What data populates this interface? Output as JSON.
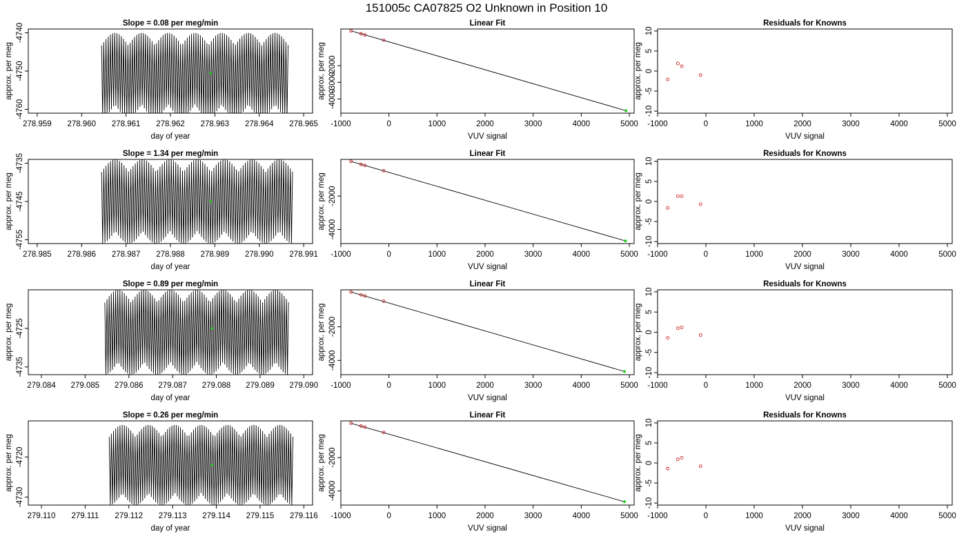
{
  "figure": {
    "title": "151005c     CA07825   O2 Unknown in Position  10"
  },
  "colors": {
    "trace": "#000000",
    "known_point": "#cc2222",
    "unknown_point": "#22cc22",
    "fit_line": "#000000"
  },
  "chart_data": [
    {
      "type": "line",
      "row": 1,
      "panel": "time-series",
      "title": "Slope =  0.08  per meg/min",
      "xlabel": "day of year",
      "ylabel": "approx. per meg",
      "xlim": [
        278.9588,
        278.9652
      ],
      "ylim": [
        -4761,
        -4739
      ],
      "xticks": [
        "278.959",
        "278.960",
        "278.961",
        "278.962",
        "278.963",
        "278.964",
        "278.965"
      ],
      "xtick_values": [
        278.959,
        278.96,
        278.961,
        278.962,
        278.963,
        278.964,
        278.965
      ],
      "yticks": [
        "-4740",
        "-4750",
        "-4760"
      ],
      "ytick_values": [
        -4740,
        -4750,
        -4760
      ],
      "trace": {
        "x_start": 278.96045,
        "x_end": 278.96465,
        "center": -4751,
        "amplitude": 11,
        "cycles": 85
      },
      "unknown_point": {
        "x": 278.9629,
        "y": -4750.5
      }
    },
    {
      "type": "scatter",
      "row": 1,
      "panel": "linear-fit",
      "title": "Linear Fit",
      "xlabel": "VUV signal",
      "ylabel": "approx. per meg",
      "xlim": [
        -1000,
        5100
      ],
      "ylim": [
        -4850,
        200
      ],
      "xticks": [
        "-1000",
        "0",
        "1000",
        "2000",
        "3000",
        "4000",
        "5000"
      ],
      "xtick_values": [
        -1000,
        0,
        1000,
        2000,
        3000,
        4000,
        5000
      ],
      "yticks": [
        "-2000",
        "-3000",
        "-4000"
      ],
      "ytick_values": [
        -2000,
        -3000,
        -4000
      ],
      "fit_line": {
        "x": [
          -790,
          4930
        ],
        "y": [
          90,
          -4700
        ]
      },
      "known_points": {
        "x": [
          -790,
          -580,
          -500,
          -110
        ],
        "y": [
          90,
          -90,
          -150,
          -470
        ]
      },
      "unknown_point": {
        "x": 4930,
        "y": -4700
      }
    },
    {
      "type": "scatter",
      "row": 1,
      "panel": "residuals",
      "title": "Residuals for Knowns",
      "xlabel": "VUV signal",
      "ylabel": "approx. per meg",
      "xlim": [
        -1000,
        5100
      ],
      "ylim": [
        -10.5,
        10.5
      ],
      "xticks": [
        "-1000",
        "0",
        "1000",
        "2000",
        "3000",
        "4000",
        "5000"
      ],
      "xtick_values": [
        -1000,
        0,
        1000,
        2000,
        3000,
        4000,
        5000
      ],
      "yticks": [
        "10",
        "5",
        "0",
        "-5",
        "-10"
      ],
      "ytick_values": [
        10,
        5,
        0,
        -5,
        -10
      ],
      "known_points": {
        "x": [
          -790,
          -580,
          -500,
          -110
        ],
        "y": [
          -2.1,
          1.9,
          1.2,
          -1.0
        ]
      }
    },
    {
      "type": "line",
      "row": 2,
      "panel": "time-series",
      "title": "Slope =  1.34  per meg/min",
      "xlabel": "day of year",
      "ylabel": "approx. per meg",
      "xlim": [
        278.9848,
        278.9912
      ],
      "ylim": [
        -4756,
        -4734
      ],
      "xticks": [
        "278.985",
        "278.986",
        "278.987",
        "278.988",
        "278.989",
        "278.990",
        "278.991"
      ],
      "xtick_values": [
        278.985,
        278.986,
        278.987,
        278.988,
        278.989,
        278.99,
        278.991
      ],
      "yticks": [
        "-4735",
        "-4745",
        "-4755"
      ],
      "ytick_values": [
        -4735,
        -4745,
        -4755
      ],
      "trace": {
        "x_start": 278.98645,
        "x_end": 278.99075,
        "center": -4745,
        "amplitude": 11,
        "cycles": 85
      },
      "unknown_point": {
        "x": 278.9889,
        "y": -4745
      }
    },
    {
      "type": "scatter",
      "row": 2,
      "panel": "linear-fit",
      "title": "Linear Fit",
      "xlabel": "VUV signal",
      "ylabel": "approx. per meg",
      "xlim": [
        -1000,
        5100
      ],
      "ylim": [
        -4850,
        200
      ],
      "xticks": [
        "-1000",
        "0",
        "1000",
        "2000",
        "3000",
        "4000",
        "5000"
      ],
      "xtick_values": [
        -1000,
        0,
        1000,
        2000,
        3000,
        4000,
        5000
      ],
      "yticks": [
        "-2000",
        "-4000"
      ],
      "ytick_values": [
        -2000,
        -4000
      ],
      "fit_line": {
        "x": [
          -790,
          4920
        ],
        "y": [
          80,
          -4690
        ]
      },
      "known_points": {
        "x": [
          -790,
          -580,
          -500,
          -110
        ],
        "y": [
          80,
          -100,
          -160,
          -480
        ]
      },
      "unknown_point": {
        "x": 4920,
        "y": -4690
      }
    },
    {
      "type": "scatter",
      "row": 2,
      "panel": "residuals",
      "title": "Residuals for Knowns",
      "xlabel": "VUV signal",
      "ylabel": "approx. per meg",
      "xlim": [
        -1000,
        5100
      ],
      "ylim": [
        -10.5,
        10.5
      ],
      "xticks": [
        "-1000",
        "0",
        "1000",
        "2000",
        "3000",
        "4000",
        "5000"
      ],
      "xtick_values": [
        -1000,
        0,
        1000,
        2000,
        3000,
        4000,
        5000
      ],
      "yticks": [
        "10",
        "5",
        "0",
        "-5",
        "-10"
      ],
      "ytick_values": [
        10,
        5,
        0,
        -5,
        -10
      ],
      "known_points": {
        "x": [
          -790,
          -580,
          -500,
          -110
        ],
        "y": [
          -1.6,
          1.3,
          1.3,
          -0.7
        ]
      }
    },
    {
      "type": "line",
      "row": 3,
      "panel": "time-series",
      "title": "Slope =  0.89  per meg/min",
      "xlabel": "day of year",
      "ylabel": "approx. per meg",
      "xlim": [
        279.0837,
        279.0902
      ],
      "ylim": [
        -4737,
        -4715
      ],
      "xticks": [
        "279.084",
        "279.085",
        "279.086",
        "279.087",
        "279.088",
        "279.089",
        "279.090"
      ],
      "xtick_values": [
        279.084,
        279.085,
        279.086,
        279.087,
        279.088,
        279.089,
        279.09
      ],
      "yticks": [
        "-4725",
        "-4735"
      ],
      "ytick_values": [
        -4725,
        -4735
      ],
      "trace": {
        "x_start": 279.08545,
        "x_end": 279.08965,
        "center": -4726,
        "amplitude": 11,
        "cycles": 85
      },
      "unknown_point": {
        "x": 279.0879,
        "y": -4725
      }
    },
    {
      "type": "scatter",
      "row": 3,
      "panel": "linear-fit",
      "title": "Linear Fit",
      "xlabel": "VUV signal",
      "ylabel": "approx. per meg",
      "xlim": [
        -1000,
        5100
      ],
      "ylim": [
        -4850,
        200
      ],
      "xticks": [
        "-1000",
        "0",
        "1000",
        "2000",
        "3000",
        "4000",
        "5000"
      ],
      "xtick_values": [
        -1000,
        0,
        1000,
        2000,
        3000,
        4000,
        5000
      ],
      "yticks": [
        "-2000",
        "-4000"
      ],
      "ytick_values": [
        -2000,
        -4000
      ],
      "fit_line": {
        "x": [
          -790,
          4900
        ],
        "y": [
          70,
          -4660
        ]
      },
      "known_points": {
        "x": [
          -790,
          -580,
          -500,
          -110
        ],
        "y": [
          70,
          -100,
          -160,
          -480
        ]
      },
      "unknown_point": {
        "x": 4900,
        "y": -4660
      }
    },
    {
      "type": "scatter",
      "row": 3,
      "panel": "residuals",
      "title": "Residuals for Knowns",
      "xlabel": "VUV signal",
      "ylabel": "approx. per meg",
      "xlim": [
        -1000,
        5100
      ],
      "ylim": [
        -10.5,
        10.5
      ],
      "xticks": [
        "-1000",
        "0",
        "1000",
        "2000",
        "3000",
        "4000",
        "5000"
      ],
      "xtick_values": [
        -1000,
        0,
        1000,
        2000,
        3000,
        4000,
        5000
      ],
      "yticks": [
        "10",
        "5",
        "0",
        "-5",
        "-10"
      ],
      "ytick_values": [
        10,
        5,
        0,
        -5,
        -10
      ],
      "known_points": {
        "x": [
          -790,
          -580,
          -500,
          -110
        ],
        "y": [
          -1.4,
          1.0,
          1.2,
          -0.7
        ]
      }
    },
    {
      "type": "line",
      "row": 4,
      "panel": "time-series",
      "title": "Slope =  0.26  per meg/min",
      "xlabel": "day of year",
      "ylabel": "approx. per meg",
      "xlim": [
        279.1097,
        279.1162
      ],
      "ylim": [
        -4732,
        -4711
      ],
      "xticks": [
        "279.110",
        "279.111",
        "279.112",
        "279.113",
        "279.114",
        "279.115",
        "279.116"
      ],
      "xtick_values": [
        279.11,
        279.111,
        279.112,
        279.113,
        279.114,
        279.115,
        279.116
      ],
      "yticks": [
        "-4720",
        "-4730"
      ],
      "ytick_values": [
        -4720,
        -4730
      ],
      "trace": {
        "x_start": 279.11155,
        "x_end": 279.11575,
        "center": -4722,
        "amplitude": 10,
        "cycles": 85
      },
      "unknown_point": {
        "x": 279.1139,
        "y": -4722
      }
    },
    {
      "type": "scatter",
      "row": 4,
      "panel": "linear-fit",
      "title": "Linear Fit",
      "xlabel": "VUV signal",
      "ylabel": "approx. per meg",
      "xlim": [
        -1000,
        5100
      ],
      "ylim": [
        -4850,
        200
      ],
      "xticks": [
        "-1000",
        "0",
        "1000",
        "2000",
        "3000",
        "4000",
        "5000"
      ],
      "xtick_values": [
        -1000,
        0,
        1000,
        2000,
        3000,
        4000,
        5000
      ],
      "yticks": [
        "-2000",
        "-4000"
      ],
      "ytick_values": [
        -2000,
        -4000
      ],
      "fit_line": {
        "x": [
          -790,
          4900
        ],
        "y": [
          60,
          -4650
        ]
      },
      "known_points": {
        "x": [
          -790,
          -580,
          -500,
          -110
        ],
        "y": [
          60,
          -110,
          -170,
          -490
        ]
      },
      "unknown_point": {
        "x": 4900,
        "y": -4650
      }
    },
    {
      "type": "scatter",
      "row": 4,
      "panel": "residuals",
      "title": "Residuals for Knowns",
      "xlabel": "VUV signal",
      "ylabel": "approx. per meg",
      "xlim": [
        -1000,
        5100
      ],
      "ylim": [
        -10.5,
        10.5
      ],
      "xticks": [
        "-1000",
        "0",
        "1000",
        "2000",
        "3000",
        "4000",
        "5000"
      ],
      "xtick_values": [
        -1000,
        0,
        1000,
        2000,
        3000,
        4000,
        5000
      ],
      "yticks": [
        "10",
        "5",
        "0",
        "-5",
        "-10"
      ],
      "ytick_values": [
        10,
        5,
        0,
        -5,
        -10
      ],
      "known_points": {
        "x": [
          -790,
          -580,
          -500,
          -110
        ],
        "y": [
          -1.4,
          0.9,
          1.3,
          -0.8
        ]
      }
    }
  ]
}
